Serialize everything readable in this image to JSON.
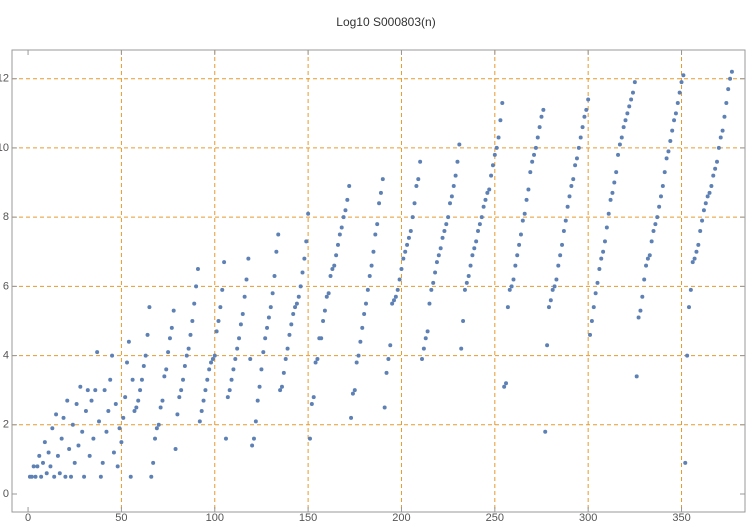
{
  "chart_data": {
    "type": "scatter",
    "title": "Log10 S000803(n)",
    "color": "#5e81b5",
    "grid_color": "#e69a2e",
    "xlim": [
      -8.6,
      384
    ],
    "ylim": [
      -0.52,
      12.83
    ],
    "xticks": [
      0,
      50,
      100,
      150,
      200,
      250,
      300,
      350
    ],
    "yticks": [
      0,
      2,
      4,
      6,
      8,
      10,
      12
    ],
    "xgrid": [
      50,
      100,
      150,
      200,
      250,
      300,
      350
    ],
    "ygrid": [
      2,
      4,
      6,
      8,
      10,
      12
    ],
    "x": [
      1,
      2,
      3,
      4,
      5,
      6,
      7,
      8,
      9,
      10,
      11,
      12,
      13,
      14,
      15,
      16,
      17,
      18,
      19,
      20,
      21,
      22,
      23,
      24,
      25,
      26,
      27,
      28,
      29,
      30,
      31,
      32,
      33,
      34,
      35,
      36,
      37,
      38,
      39,
      40,
      41,
      42,
      43,
      44,
      45,
      46,
      47,
      48,
      49,
      50,
      51,
      52,
      53,
      54,
      55,
      56,
      57,
      58,
      59,
      60,
      61,
      62,
      63,
      64,
      65,
      66,
      67,
      68,
      69,
      70,
      71,
      72,
      73,
      74,
      75,
      76,
      77,
      78,
      79,
      80,
      81,
      82,
      83,
      84,
      85,
      86,
      87,
      88,
      89,
      90,
      91,
      92,
      93,
      94,
      95,
      96,
      97,
      98,
      99,
      100,
      101,
      102,
      103,
      104,
      105,
      106,
      107,
      108,
      109,
      110,
      111,
      112,
      113,
      114,
      115,
      116,
      117,
      118,
      119,
      120,
      121,
      122,
      123,
      124,
      125,
      126,
      127,
      128,
      129,
      130,
      131,
      132,
      133,
      134,
      135,
      136,
      137,
      138,
      139,
      140,
      141,
      142,
      143,
      144,
      145,
      146,
      147,
      148,
      149,
      150,
      151,
      152,
      153,
      154,
      155,
      156,
      157,
      158,
      159,
      160,
      161,
      162,
      163,
      164,
      165,
      166,
      167,
      168,
      169,
      170,
      171,
      172,
      173,
      174,
      175,
      176,
      177,
      178,
      179,
      180,
      181,
      182,
      183,
      184,
      185,
      186,
      187,
      188,
      189,
      190,
      191,
      192,
      193,
      194,
      195,
      196,
      197,
      198,
      199,
      200,
      201,
      202,
      203,
      204,
      205,
      206,
      207,
      208,
      209,
      210,
      211,
      212,
      213,
      214,
      215,
      216,
      217,
      218,
      219,
      220,
      221,
      222,
      223,
      224,
      225,
      226,
      227,
      228,
      229,
      230,
      231,
      232,
      233,
      234,
      235,
      236,
      237,
      238,
      239,
      240,
      241,
      242,
      243,
      244,
      245,
      246,
      247,
      248,
      249,
      250,
      251,
      252,
      253,
      254,
      255,
      256,
      257,
      258,
      259,
      260,
      261,
      262,
      263,
      264,
      265,
      266,
      267,
      268,
      269,
      270,
      271,
      272,
      273,
      274,
      275,
      276,
      277,
      278,
      279,
      280,
      281,
      282,
      283,
      284,
      285,
      286,
      287,
      288,
      289,
      290,
      291,
      292,
      293,
      294,
      295,
      296,
      297,
      298,
      299,
      300,
      301,
      302,
      303,
      304,
      305,
      306,
      307,
      308,
      309,
      310,
      311,
      312,
      313,
      314,
      315,
      316,
      317,
      318,
      319,
      320,
      321,
      322,
      323,
      324,
      325,
      326,
      327,
      328,
      329,
      330,
      331,
      332,
      333,
      334,
      335,
      336,
      337,
      338,
      339,
      340,
      341,
      342,
      343,
      344,
      345,
      346,
      347,
      348,
      349,
      350,
      351,
      352,
      353,
      354,
      355,
      356,
      357,
      358,
      359,
      360,
      361,
      362,
      363,
      364,
      365,
      366,
      367,
      368,
      369,
      370,
      371,
      372,
      373,
      374,
      375,
      376,
      377
    ],
    "values": [
      0.5,
      0.5,
      0.8,
      0.5,
      0.8,
      1.1,
      0.5,
      0.9,
      1.5,
      0.6,
      1.2,
      0.8,
      1.9,
      0.5,
      2.3,
      1.1,
      0.6,
      1.6,
      2.2,
      0.5,
      2.7,
      1.3,
      0.5,
      2.0,
      0.9,
      2.6,
      1.4,
      3.1,
      1.8,
      0.5,
      2.4,
      3.0,
      1.1,
      2.7,
      1.6,
      3.0,
      4.1,
      2.1,
      0.5,
      0.9,
      3.0,
      1.8,
      2.4,
      3.3,
      4.0,
      1.2,
      2.6,
      0.8,
      1.9,
      1.5,
      2.2,
      2.8,
      3.8,
      4.4,
      0.5,
      3.3,
      2.4,
      2.5,
      2.7,
      3.0,
      3.3,
      3.7,
      4.0,
      4.6,
      5.4,
      0.5,
      0.9,
      1.6,
      1.9,
      2.0,
      2.5,
      2.7,
      3.4,
      3.6,
      4.1,
      4.5,
      4.8,
      5.3,
      1.3,
      2.3,
      2.8,
      3.0,
      3.3,
      3.7,
      4.0,
      4.2,
      4.6,
      5.0,
      5.5,
      6.0,
      6.5,
      2.1,
      2.4,
      2.7,
      3.0,
      3.3,
      3.6,
      3.8,
      3.9,
      4.0,
      4.7,
      5.0,
      5.4,
      5.9,
      6.7,
      1.6,
      2.8,
      3.0,
      3.3,
      3.6,
      3.9,
      4.2,
      4.5,
      4.9,
      5.2,
      5.7,
      6.2,
      6.8,
      3.9,
      1.4,
      1.6,
      2.1,
      2.7,
      3.1,
      3.6,
      4.1,
      4.5,
      4.8,
      5.1,
      5.4,
      5.8,
      6.3,
      7.0,
      7.5,
      3.0,
      3.1,
      3.5,
      3.9,
      4.2,
      4.6,
      4.9,
      5.2,
      5.4,
      5.5,
      5.7,
      6.0,
      6.4,
      6.8,
      7.3,
      8.1,
      1.6,
      2.6,
      2.8,
      3.8,
      3.9,
      4.5,
      4.5,
      5.0,
      5.3,
      5.7,
      5.8,
      6.3,
      6.5,
      6.6,
      6.9,
      7.2,
      7.5,
      7.7,
      8.0,
      8.2,
      8.5,
      8.9,
      2.2,
      2.9,
      3.0,
      3.8,
      4.0,
      4.4,
      4.8,
      5.2,
      5.5,
      5.9,
      6.3,
      6.6,
      7.0,
      7.5,
      7.8,
      8.4,
      8.7,
      9.1,
      2.5,
      3.5,
      3.9,
      4.3,
      5.5,
      5.6,
      5.7,
      5.9,
      6.2,
      6.5,
      6.8,
      7.0,
      7.2,
      7.4,
      7.6,
      8.0,
      8.4,
      8.9,
      9.1,
      9.6,
      3.9,
      4.2,
      4.5,
      4.7,
      5.5,
      5.9,
      6.1,
      6.4,
      6.7,
      6.9,
      7.1,
      7.4,
      7.6,
      7.8,
      8.0,
      8.4,
      8.6,
      8.9,
      9.2,
      9.6,
      10.1,
      4.2,
      5.0,
      5.9,
      6.1,
      6.3,
      6.6,
      6.9,
      7.1,
      7.3,
      7.6,
      7.8,
      8.0,
      8.3,
      8.5,
      8.7,
      8.8,
      9.2,
      9.5,
      9.8,
      10.0,
      10.3,
      10.8,
      11.3,
      3.1,
      3.2,
      5.4,
      5.9,
      6.0,
      6.2,
      6.6,
      6.9,
      7.2,
      7.5,
      7.9,
      8.1,
      8.5,
      8.8,
      9.3,
      9.6,
      9.8,
      10.0,
      10.3,
      10.6,
      10.9,
      11.1,
      1.8,
      4.3,
      5.4,
      5.6,
      5.9,
      6.0,
      6.2,
      6.6,
      6.9,
      7.2,
      7.6,
      7.9,
      8.3,
      8.6,
      8.9,
      9.1,
      9.5,
      9.7,
      10.0,
      10.3,
      10.6,
      10.9,
      11.1,
      11.4,
      4.6,
      5.0,
      5.4,
      5.8,
      6.1,
      6.5,
      6.8,
      7.0,
      7.3,
      7.7,
      8.1,
      8.5,
      8.7,
      9.0,
      9.3,
      9.8,
      10.1,
      10.3,
      10.6,
      10.8,
      11.0,
      11.2,
      11.4,
      11.6,
      11.9,
      3.4,
      5.1,
      5.3,
      5.7,
      6.2,
      6.6,
      6.8,
      6.9,
      7.3,
      7.6,
      7.8,
      8.0,
      8.3,
      8.6,
      8.9,
      9.3,
      9.7,
      9.9,
      10.2,
      10.5,
      10.8,
      11.0,
      11.3,
      11.6,
      11.9,
      12.1,
      0.9,
      4.0,
      5.4,
      5.9,
      6.7,
      6.8,
      7.0,
      7.2,
      7.6,
      7.9,
      8.2,
      8.4,
      8.6,
      8.7,
      8.9,
      9.2,
      9.4,
      9.6,
      10.0,
      10.3,
      10.5,
      10.9,
      11.3,
      11.7,
      12.0,
      12.2
    ]
  }
}
